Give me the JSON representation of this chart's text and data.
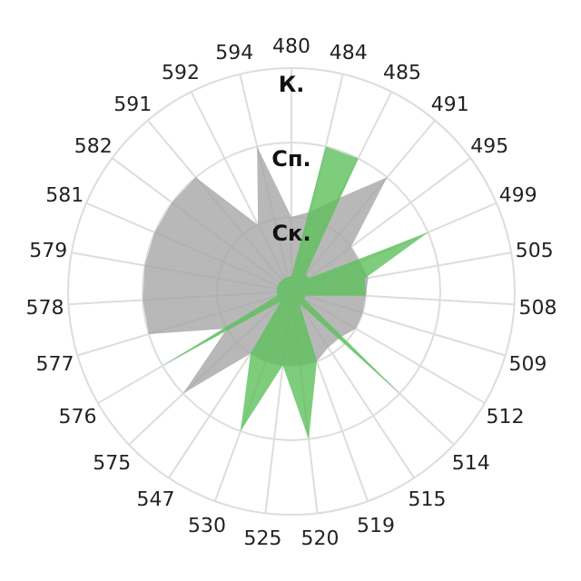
{
  "chart_data": {
    "type": "radar",
    "categories": [
      "480",
      "484",
      "485",
      "491",
      "495",
      "499",
      "505",
      "508",
      "509",
      "512",
      "514",
      "515",
      "519",
      "520",
      "525",
      "530",
      "547",
      "575",
      "576",
      "577",
      "578",
      "579",
      "581",
      "582",
      "591",
      "592",
      "594"
    ],
    "ylim": [
      0,
      3
    ],
    "yticks": [
      {
        "value": 1,
        "label": "Ск."
      },
      {
        "value": 2,
        "label": "Сп."
      },
      {
        "value": 3,
        "label": "К."
      }
    ],
    "grid": true,
    "series": [
      {
        "color": "#a6a6a6",
        "values": [
          1.0,
          1.1,
          1.4,
          2.0,
          1.0,
          1.0,
          1.05,
          1.0,
          1.0,
          1.0,
          0.9,
          0.9,
          1.0,
          1.0,
          1.0,
          1.0,
          1.0,
          2.0,
          1.0,
          2.0,
          2.0,
          2.0,
          2.0,
          2.0,
          2.0,
          1.0,
          2.0
        ]
      },
      {
        "color": "#5cc05c",
        "values": [
          0.2,
          2.0,
          2.0,
          0.3,
          0.3,
          2.0,
          1.0,
          1.0,
          0.2,
          0.2,
          2.0,
          0.2,
          1.0,
          2.0,
          1.0,
          2.0,
          1.0,
          0.2,
          2.0,
          0.2,
          0.2,
          0.2,
          0.2,
          0.2,
          0.2,
          0.2,
          0.2
        ]
      }
    ]
  }
}
